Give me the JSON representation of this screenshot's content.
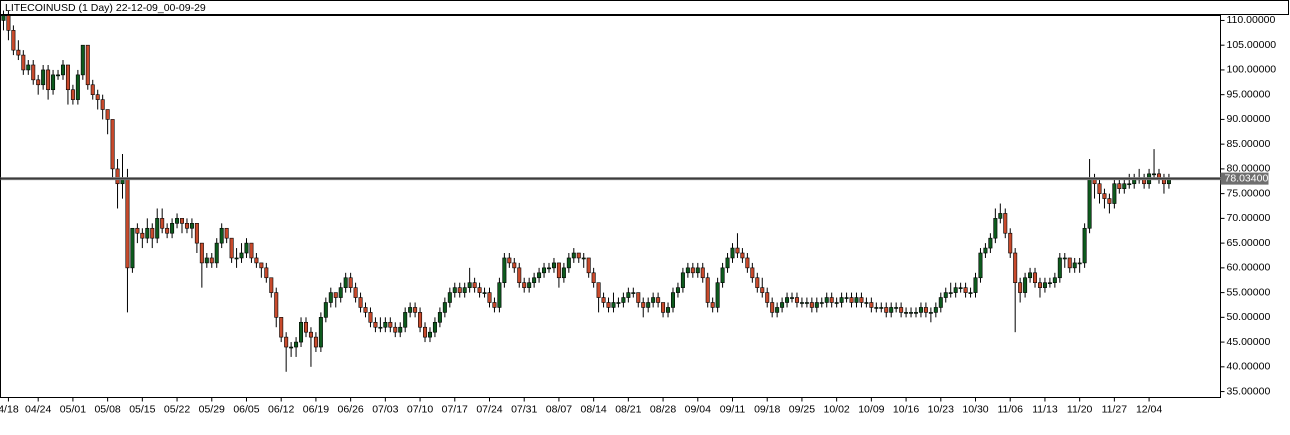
{
  "chart_data": {
    "type": "candlestick",
    "title": "LITECOINUSD (1 Day) 22-12-09_00-09-29",
    "up_color": "#0d5a1d",
    "down_color": "#c84a2c",
    "ylim": [
      33.8,
      111.0
    ],
    "yticks": [
      {
        "value": 35,
        "label": "35.00000"
      },
      {
        "value": 40,
        "label": "40.00000"
      },
      {
        "value": 45,
        "label": "45.00000"
      },
      {
        "value": 50,
        "label": "50.00000"
      },
      {
        "value": 55,
        "label": "55.00000"
      },
      {
        "value": 60,
        "label": "60.00000"
      },
      {
        "value": 65,
        "label": "65.00000"
      },
      {
        "value": 70,
        "label": "70.00000"
      },
      {
        "value": 75,
        "label": "75.00000"
      },
      {
        "value": 80,
        "label": "80.00000"
      },
      {
        "value": 85,
        "label": "85.00000"
      },
      {
        "value": 90,
        "label": "90.00000"
      },
      {
        "value": 95,
        "label": "95.00000"
      },
      {
        "value": 100,
        "label": "100.00000"
      },
      {
        "value": 105,
        "label": "105.00000"
      },
      {
        "value": 110,
        "label": "110.00000"
      }
    ],
    "xlim": [
      -0.6,
      245.4
    ],
    "xticks": [
      {
        "value": 1,
        "label": "4/18"
      },
      {
        "value": 7,
        "label": "04/24"
      },
      {
        "value": 14,
        "label": "05/01"
      },
      {
        "value": 21,
        "label": "05/08"
      },
      {
        "value": 28,
        "label": "05/15"
      },
      {
        "value": 35,
        "label": "05/22"
      },
      {
        "value": 42,
        "label": "05/29"
      },
      {
        "value": 49,
        "label": "06/05"
      },
      {
        "value": 56,
        "label": "06/12"
      },
      {
        "value": 63,
        "label": "06/19"
      },
      {
        "value": 70,
        "label": "06/26"
      },
      {
        "value": 77,
        "label": "07/03"
      },
      {
        "value": 84,
        "label": "07/10"
      },
      {
        "value": 91,
        "label": "07/17"
      },
      {
        "value": 98,
        "label": "07/24"
      },
      {
        "value": 105,
        "label": "07/31"
      },
      {
        "value": 112,
        "label": "08/07"
      },
      {
        "value": 119,
        "label": "08/14"
      },
      {
        "value": 126,
        "label": "08/21"
      },
      {
        "value": 133,
        "label": "08/28"
      },
      {
        "value": 140,
        "label": "09/04"
      },
      {
        "value": 147,
        "label": "09/11"
      },
      {
        "value": 154,
        "label": "09/18"
      },
      {
        "value": 161,
        "label": "09/25"
      },
      {
        "value": 168,
        "label": "10/02"
      },
      {
        "value": 175,
        "label": "10/09"
      },
      {
        "value": 182,
        "label": "10/16"
      },
      {
        "value": 189,
        "label": "10/23"
      },
      {
        "value": 196,
        "label": "10/30"
      },
      {
        "value": 203,
        "label": "11/06"
      },
      {
        "value": 210,
        "label": "11/13"
      },
      {
        "value": 217,
        "label": "11/20"
      },
      {
        "value": 224,
        "label": "11/27"
      },
      {
        "value": 231,
        "label": "12/04"
      }
    ],
    "price_line": {
      "value": 78.034,
      "label": "78.03400"
    },
    "ohlc": [
      [
        110,
        112,
        108,
        111
      ],
      [
        111,
        112,
        106,
        108
      ],
      [
        108,
        109,
        103,
        104
      ],
      [
        104,
        106,
        102,
        103
      ],
      [
        103,
        104,
        99,
        100
      ],
      [
        100,
        102,
        99,
        101
      ],
      [
        101,
        102,
        97,
        98
      ],
      [
        98,
        99,
        95,
        97
      ],
      [
        97,
        101,
        96,
        100
      ],
      [
        100,
        101,
        94,
        96
      ],
      [
        96,
        100,
        95,
        99
      ],
      [
        99,
        100,
        98,
        99
      ],
      [
        99,
        102,
        98,
        101
      ],
      [
        101,
        101,
        93,
        96
      ],
      [
        96,
        97,
        93,
        94
      ],
      [
        94,
        100,
        93,
        99
      ],
      [
        99,
        105,
        98,
        105
      ],
      [
        105,
        105,
        96,
        97
      ],
      [
        97,
        98,
        94,
        95
      ],
      [
        95,
        96,
        92,
        94
      ],
      [
        94,
        95,
        90,
        92
      ],
      [
        92,
        92,
        87,
        90
      ],
      [
        90,
        90,
        78,
        80
      ],
      [
        80,
        82,
        72,
        77
      ],
      [
        77,
        83,
        74,
        78
      ],
      [
        78,
        80,
        51,
        60
      ],
      [
        60,
        68,
        59,
        68
      ],
      [
        68,
        69,
        65,
        67
      ],
      [
        67,
        68,
        64,
        66
      ],
      [
        66,
        70,
        65,
        68
      ],
      [
        68,
        69,
        64,
        66
      ],
      [
        66,
        72,
        65,
        70
      ],
      [
        70,
        72,
        67,
        68
      ],
      [
        68,
        69,
        66,
        67
      ],
      [
        67,
        70,
        66,
        69
      ],
      [
        69,
        71,
        68,
        70
      ],
      [
        70,
        70,
        67,
        69
      ],
      [
        69,
        70,
        67,
        68
      ],
      [
        68,
        70,
        66,
        69
      ],
      [
        69,
        69,
        63,
        65
      ],
      [
        65,
        65,
        56,
        61
      ],
      [
        61,
        63,
        60,
        62
      ],
      [
        62,
        63,
        60,
        61
      ],
      [
        61,
        66,
        60,
        65
      ],
      [
        65,
        69,
        64,
        68
      ],
      [
        68,
        68,
        65,
        66
      ],
      [
        66,
        66,
        61,
        62
      ],
      [
        62,
        64,
        60,
        62
      ],
      [
        62,
        65,
        61,
        63
      ],
      [
        63,
        66,
        62,
        65
      ],
      [
        65,
        65,
        61,
        62
      ],
      [
        62,
        63,
        60,
        61
      ],
      [
        61,
        61,
        58,
        60
      ],
      [
        60,
        61,
        57,
        58
      ],
      [
        58,
        58,
        54,
        55
      ],
      [
        55,
        56,
        48,
        50
      ],
      [
        50,
        50,
        45,
        46
      ],
      [
        46,
        47,
        39,
        44
      ],
      [
        44,
        45,
        42,
        44
      ],
      [
        44,
        46,
        42,
        45
      ],
      [
        45,
        50,
        44,
        49
      ],
      [
        49,
        50,
        46,
        47
      ],
      [
        47,
        48,
        40,
        46
      ],
      [
        46,
        47,
        43,
        44
      ],
      [
        44,
        51,
        43,
        50
      ],
      [
        50,
        54,
        49,
        53
      ],
      [
        53,
        56,
        52,
        55
      ],
      [
        55,
        55,
        52,
        54
      ],
      [
        54,
        57,
        53,
        56
      ],
      [
        56,
        59,
        55,
        58
      ],
      [
        58,
        59,
        55,
        56
      ],
      [
        56,
        57,
        53,
        54
      ],
      [
        54,
        55,
        51,
        52
      ],
      [
        52,
        53,
        50,
        51
      ],
      [
        51,
        52,
        48,
        49
      ],
      [
        49,
        50,
        47,
        48
      ],
      [
        48,
        50,
        47,
        48
      ],
      [
        48,
        50,
        47,
        49
      ],
      [
        49,
        50,
        47,
        48
      ],
      [
        48,
        49,
        46,
        47
      ],
      [
        47,
        49,
        46,
        48
      ],
      [
        48,
        52,
        47,
        51
      ],
      [
        51,
        53,
        50,
        52
      ],
      [
        52,
        53,
        50,
        51
      ],
      [
        51,
        52,
        47,
        48
      ],
      [
        48,
        49,
        45,
        46
      ],
      [
        46,
        48,
        45,
        47
      ],
      [
        47,
        50,
        46,
        49
      ],
      [
        49,
        52,
        48,
        51
      ],
      [
        51,
        54,
        50,
        53
      ],
      [
        53,
        56,
        52,
        55
      ],
      [
        55,
        57,
        54,
        56
      ],
      [
        56,
        57,
        54,
        55
      ],
      [
        55,
        57,
        54,
        56
      ],
      [
        56,
        60,
        55,
        57
      ],
      [
        57,
        58,
        55,
        56
      ],
      [
        56,
        57,
        54,
        55
      ],
      [
        55,
        56,
        54,
        55
      ],
      [
        55,
        56,
        52,
        53
      ],
      [
        53,
        54,
        51,
        52
      ],
      [
        52,
        58,
        51,
        57
      ],
      [
        57,
        63,
        56,
        62
      ],
      [
        62,
        63,
        60,
        61
      ],
      [
        61,
        62,
        59,
        60
      ],
      [
        60,
        61,
        56,
        57
      ],
      [
        57,
        58,
        55,
        56
      ],
      [
        56,
        58,
        55,
        57
      ],
      [
        57,
        59,
        56,
        58
      ],
      [
        58,
        60,
        57,
        59
      ],
      [
        59,
        61,
        58,
        60
      ],
      [
        60,
        61,
        59,
        60
      ],
      [
        60,
        62,
        59,
        61
      ],
      [
        61,
        61,
        56,
        58
      ],
      [
        58,
        61,
        57,
        60
      ],
      [
        60,
        63,
        59,
        62
      ],
      [
        62,
        64,
        61,
        63
      ],
      [
        63,
        63,
        61,
        62
      ],
      [
        62,
        63,
        60,
        62
      ],
      [
        62,
        62,
        58,
        59
      ],
      [
        59,
        60,
        56,
        57
      ],
      [
        57,
        57,
        51,
        54
      ],
      [
        54,
        55,
        52,
        53
      ],
      [
        53,
        54,
        51,
        52
      ],
      [
        52,
        55,
        51,
        53
      ],
      [
        53,
        54,
        52,
        53
      ],
      [
        53,
        55,
        52,
        54
      ],
      [
        54,
        56,
        53,
        55
      ],
      [
        55,
        56,
        54,
        55
      ],
      [
        55,
        55,
        52,
        53
      ],
      [
        53,
        54,
        50,
        52
      ],
      [
        52,
        54,
        51,
        53
      ],
      [
        53,
        55,
        52,
        54
      ],
      [
        54,
        55,
        52,
        53
      ],
      [
        53,
        53,
        50,
        51
      ],
      [
        51,
        53,
        50,
        52
      ],
      [
        52,
        56,
        51,
        55
      ],
      [
        55,
        57,
        54,
        56
      ],
      [
        56,
        60,
        55,
        59
      ],
      [
        59,
        61,
        58,
        60
      ],
      [
        60,
        61,
        58,
        59
      ],
      [
        59,
        61,
        58,
        60
      ],
      [
        60,
        61,
        57,
        58
      ],
      [
        58,
        59,
        52,
        53
      ],
      [
        53,
        54,
        51,
        52
      ],
      [
        52,
        58,
        51,
        57
      ],
      [
        57,
        61,
        56,
        60
      ],
      [
        60,
        63,
        59,
        62
      ],
      [
        62,
        65,
        61,
        64
      ],
      [
        64,
        67,
        62,
        63
      ],
      [
        63,
        64,
        61,
        62
      ],
      [
        62,
        63,
        59,
        60
      ],
      [
        60,
        61,
        57,
        58
      ],
      [
        58,
        59,
        55,
        56
      ],
      [
        56,
        58,
        54,
        55
      ],
      [
        55,
        56,
        52,
        53
      ],
      [
        53,
        54,
        50,
        51
      ],
      [
        51,
        53,
        50,
        52
      ],
      [
        52,
        54,
        51,
        53
      ],
      [
        53,
        55,
        52,
        54
      ],
      [
        54,
        55,
        53,
        54
      ],
      [
        54,
        55,
        52,
        53
      ],
      [
        53,
        54,
        52,
        53
      ],
      [
        53,
        54,
        52,
        53
      ],
      [
        53,
        54,
        51,
        52
      ],
      [
        52,
        54,
        51,
        53
      ],
      [
        53,
        54,
        52,
        53
      ],
      [
        53,
        55,
        52,
        54
      ],
      [
        54,
        55,
        52,
        53
      ],
      [
        53,
        54,
        52,
        53
      ],
      [
        53,
        55,
        52,
        54
      ],
      [
        54,
        55,
        53,
        54
      ],
      [
        54,
        55,
        52,
        53
      ],
      [
        53,
        55,
        52,
        54
      ],
      [
        54,
        55,
        52,
        53
      ],
      [
        53,
        54,
        52,
        53
      ],
      [
        53,
        54,
        51,
        52
      ],
      [
        52,
        53,
        51,
        52
      ],
      [
        52,
        53,
        51,
        52
      ],
      [
        52,
        53,
        50,
        51
      ],
      [
        51,
        53,
        50,
        52
      ],
      [
        52,
        53,
        51,
        52
      ],
      [
        52,
        53,
        50,
        51
      ],
      [
        51,
        52,
        50,
        51
      ],
      [
        51,
        52,
        50,
        51
      ],
      [
        51,
        52,
        50,
        51
      ],
      [
        51,
        53,
        50,
        52
      ],
      [
        52,
        53,
        50,
        51
      ],
      [
        51,
        52,
        49,
        51
      ],
      [
        51,
        53,
        50,
        52
      ],
      [
        52,
        55,
        51,
        54
      ],
      [
        54,
        56,
        53,
        55
      ],
      [
        55,
        57,
        54,
        55
      ],
      [
        55,
        57,
        54,
        56
      ],
      [
        56,
        57,
        55,
        56
      ],
      [
        56,
        57,
        54,
        55
      ],
      [
        55,
        56,
        54,
        55
      ],
      [
        55,
        59,
        54,
        58
      ],
      [
        58,
        64,
        57,
        63
      ],
      [
        63,
        65,
        62,
        64
      ],
      [
        64,
        67,
        63,
        66
      ],
      [
        66,
        72,
        65,
        70
      ],
      [
        70,
        73,
        69,
        71
      ],
      [
        71,
        72,
        66,
        67
      ],
      [
        67,
        68,
        62,
        63
      ],
      [
        63,
        64,
        47,
        57
      ],
      [
        57,
        58,
        53,
        55
      ],
      [
        55,
        59,
        54,
        58
      ],
      [
        58,
        60,
        57,
        59
      ],
      [
        59,
        60,
        56,
        57
      ],
      [
        57,
        58,
        54,
        56
      ],
      [
        56,
        58,
        55,
        57
      ],
      [
        57,
        58,
        56,
        57
      ],
      [
        57,
        59,
        56,
        58
      ],
      [
        58,
        63,
        57,
        62
      ],
      [
        62,
        63,
        60,
        62
      ],
      [
        62,
        62,
        59,
        60
      ],
      [
        60,
        62,
        59,
        61
      ],
      [
        61,
        62,
        59,
        61
      ],
      [
        61,
        69,
        60,
        68
      ],
      [
        68,
        82,
        67,
        78
      ],
      [
        78,
        79,
        74,
        77
      ],
      [
        77,
        78,
        73,
        75
      ],
      [
        75,
        76,
        72,
        74
      ],
      [
        74,
        75,
        71,
        73
      ],
      [
        73,
        78,
        72,
        77
      ],
      [
        77,
        78,
        75,
        76
      ],
      [
        76,
        78,
        75,
        77
      ],
      [
        77,
        79,
        76,
        77
      ],
      [
        77,
        79,
        76,
        78
      ],
      [
        78,
        80,
        77,
        78
      ],
      [
        78,
        79,
        76,
        77
      ],
      [
        77,
        80,
        76,
        79
      ],
      [
        79,
        84,
        78,
        79
      ],
      [
        79,
        80,
        77,
        78
      ],
      [
        78,
        79,
        75,
        77
      ],
      [
        77,
        79,
        76,
        78
      ]
    ]
  }
}
